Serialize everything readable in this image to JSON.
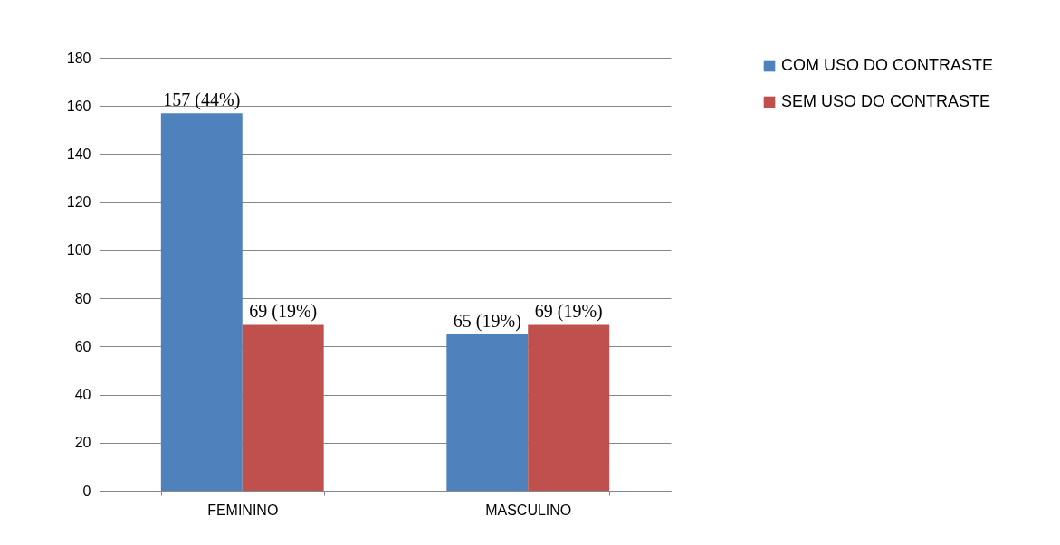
{
  "chart_data": {
    "type": "bar",
    "categories": [
      "FEMININO",
      "MASCULINO"
    ],
    "series": [
      {
        "name": "COM USO DO CONTRASTE",
        "color": "#4f81bd",
        "values": [
          157,
          65
        ],
        "value_labels": [
          "157 (44%)",
          "65 (19%)"
        ]
      },
      {
        "name": "SEM USO DO CONTRASTE",
        "color": "#c0504d",
        "values": [
          69,
          69
        ],
        "value_labels": [
          "69 (19%)",
          "69 (19%)"
        ]
      }
    ],
    "ylim": [
      0,
      180
    ],
    "yticks": [
      0,
      20,
      40,
      60,
      80,
      100,
      120,
      140,
      160,
      180
    ],
    "grid": "y",
    "legend": "right"
  }
}
